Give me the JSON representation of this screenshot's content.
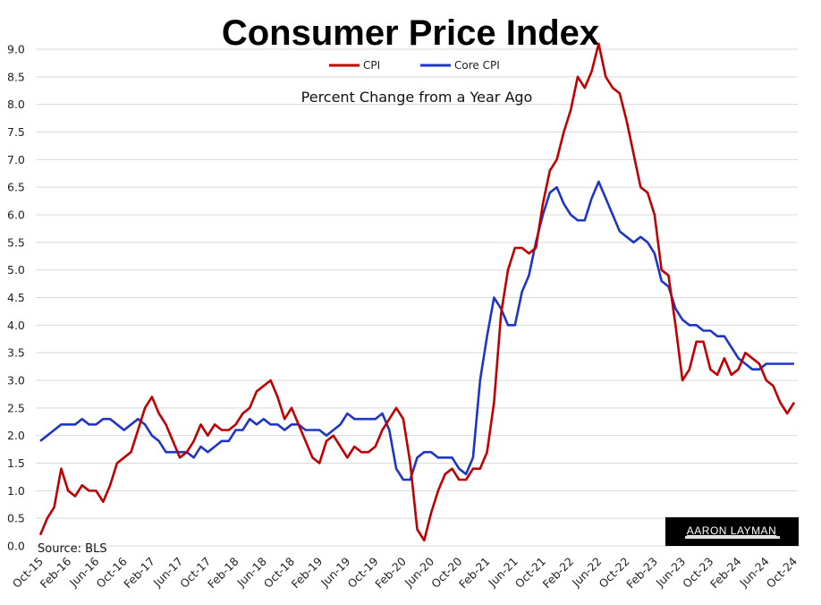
{
  "chart_data": {
    "type": "line",
    "title": "Consumer Price Index",
    "subtitle": "Percent Change from a Year Ago",
    "xlabel": "",
    "ylabel": "",
    "ylim": [
      0,
      9
    ],
    "yticks": [
      "0.0",
      "0.5",
      "1.0",
      "1.5",
      "2.0",
      "2.5",
      "3.0",
      "3.5",
      "4.0",
      "4.5",
      "5.0",
      "5.5",
      "6.0",
      "6.5",
      "7.0",
      "7.5",
      "8.0",
      "8.5",
      "9.0"
    ],
    "grid": true,
    "legend_position": "top-center",
    "x_tick_labels": [
      "Oct-15",
      "Feb-16",
      "Jun-16",
      "Oct-16",
      "Feb-17",
      "Jun-17",
      "Oct-17",
      "Feb-18",
      "Jun-18",
      "Oct-18",
      "Feb-19",
      "Jun-19",
      "Oct-19",
      "Feb-20",
      "Jun-20",
      "Oct-20",
      "Feb-21",
      "Jun-21",
      "Oct-21",
      "Feb-22",
      "Jun-22",
      "Oct-22",
      "Feb-23",
      "Jun-23",
      "Oct-23",
      "Feb-24",
      "Jun-24",
      "Oct-24"
    ],
    "x_start": "Oct-15",
    "x_end": "Oct-24",
    "frequency": "monthly",
    "series": [
      {
        "name": "CPI",
        "color": "#c00000",
        "values": [
          0.2,
          0.5,
          0.7,
          1.4,
          1.0,
          0.9,
          1.1,
          1.0,
          1.0,
          0.8,
          1.1,
          1.5,
          1.6,
          1.7,
          2.1,
          2.5,
          2.7,
          2.4,
          2.2,
          1.9,
          1.6,
          1.7,
          1.9,
          2.2,
          2.0,
          2.2,
          2.1,
          2.1,
          2.2,
          2.4,
          2.5,
          2.8,
          2.9,
          3.0,
          2.7,
          2.3,
          2.5,
          2.2,
          1.9,
          1.6,
          1.5,
          1.9,
          2.0,
          1.8,
          1.6,
          1.8,
          1.7,
          1.7,
          1.8,
          2.1,
          2.3,
          2.5,
          2.3,
          1.5,
          0.3,
          0.1,
          0.6,
          1.0,
          1.3,
          1.4,
          1.2,
          1.2,
          1.4,
          1.4,
          1.7,
          2.6,
          4.2,
          5.0,
          5.4,
          5.4,
          5.3,
          5.4,
          6.2,
          6.8,
          7.0,
          7.5,
          7.9,
          8.5,
          8.3,
          8.6,
          9.1,
          8.5,
          8.3,
          8.2,
          7.7,
          7.1,
          6.5,
          6.4,
          6.0,
          5.0,
          4.9,
          4.0,
          3.0,
          3.2,
          3.7,
          3.7,
          3.2,
          3.1,
          3.4,
          3.1,
          3.2,
          3.5,
          3.4,
          3.3,
          3.0,
          2.9,
          2.6,
          2.4,
          2.6
        ]
      },
      {
        "name": "Core CPI",
        "color": "#1f35c9",
        "values": [
          1.9,
          2.0,
          2.1,
          2.2,
          2.2,
          2.2,
          2.3,
          2.2,
          2.2,
          2.3,
          2.3,
          2.2,
          2.1,
          2.2,
          2.3,
          2.2,
          2.0,
          1.9,
          1.7,
          1.7,
          1.7,
          1.7,
          1.6,
          1.8,
          1.7,
          1.8,
          1.9,
          1.9,
          2.1,
          2.1,
          2.3,
          2.2,
          2.3,
          2.2,
          2.2,
          2.1,
          2.2,
          2.2,
          2.1,
          2.1,
          2.1,
          2.0,
          2.1,
          2.2,
          2.4,
          2.3,
          2.3,
          2.3,
          2.3,
          2.4,
          2.1,
          1.4,
          1.2,
          1.2,
          1.6,
          1.7,
          1.7,
          1.6,
          1.6,
          1.6,
          1.4,
          1.3,
          1.6,
          3.0,
          3.8,
          4.5,
          4.3,
          4.0,
          4.0,
          4.6,
          4.9,
          5.5,
          6.0,
          6.4,
          6.5,
          6.2,
          6.0,
          5.9,
          5.9,
          6.3,
          6.6,
          6.3,
          6.0,
          5.7,
          5.6,
          5.5,
          5.6,
          5.5,
          5.3,
          4.8,
          4.7,
          4.3,
          4.1,
          4.0,
          4.0,
          3.9,
          3.9,
          3.8,
          3.8,
          3.6,
          3.4,
          3.3,
          3.2,
          3.2,
          3.3,
          3.3,
          3.3,
          3.3,
          3.3
        ]
      }
    ],
    "annotations": [
      "Source: BLS"
    ]
  },
  "logo": {
    "text": "AARON LAYMAN",
    "background": "#000000",
    "text_color": "#ffffff"
  }
}
